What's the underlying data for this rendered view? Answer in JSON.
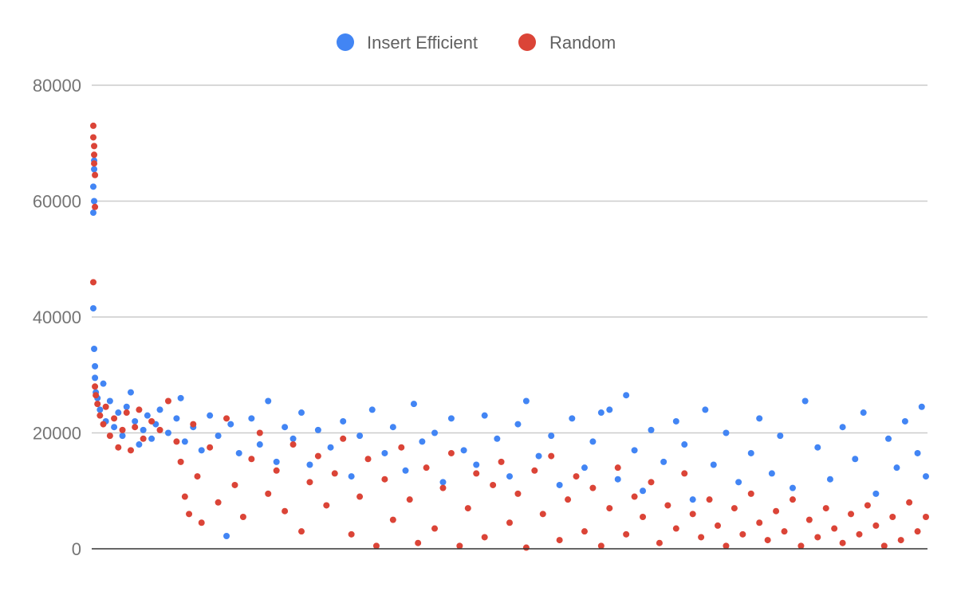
{
  "chart_data": {
    "type": "scatter",
    "title": "",
    "xlabel": "",
    "ylabel": "",
    "ylim": [
      0,
      80000
    ],
    "y_ticks": [
      "0",
      "20000",
      "40000",
      "60000",
      "80000"
    ],
    "x_tick_labels_shown": false,
    "grid": "horizontal",
    "legend_position": "top",
    "series": [
      {
        "name": "Insert Efficient",
        "color": "#4285f4",
        "points": [
          [
            0,
            58000
          ],
          [
            0,
            62500
          ],
          [
            1,
            65500
          ],
          [
            1,
            67000
          ],
          [
            1,
            60000
          ],
          [
            0,
            41500
          ],
          [
            1,
            34500
          ],
          [
            2,
            31500
          ],
          [
            2,
            29500
          ],
          [
            3,
            27000
          ],
          [
            5,
            26000
          ],
          [
            8,
            24000
          ],
          [
            12,
            28500
          ],
          [
            15,
            22000
          ],
          [
            20,
            25500
          ],
          [
            25,
            21000
          ],
          [
            30,
            23500
          ],
          [
            35,
            19500
          ],
          [
            40,
            24500
          ],
          [
            45,
            27000
          ],
          [
            50,
            22000
          ],
          [
            55,
            18000
          ],
          [
            60,
            20500
          ],
          [
            65,
            23000
          ],
          [
            70,
            19000
          ],
          [
            75,
            21500
          ],
          [
            80,
            24000
          ],
          [
            90,
            20000
          ],
          [
            100,
            22500
          ],
          [
            105,
            26000
          ],
          [
            110,
            18500
          ],
          [
            120,
            21000
          ],
          [
            130,
            17000
          ],
          [
            140,
            23000
          ],
          [
            150,
            19500
          ],
          [
            160,
            2200
          ],
          [
            165,
            21500
          ],
          [
            175,
            16500
          ],
          [
            190,
            22500
          ],
          [
            200,
            18000
          ],
          [
            210,
            25500
          ],
          [
            220,
            15000
          ],
          [
            230,
            21000
          ],
          [
            240,
            19000
          ],
          [
            250,
            23500
          ],
          [
            260,
            14500
          ],
          [
            270,
            20500
          ],
          [
            285,
            17500
          ],
          [
            300,
            22000
          ],
          [
            310,
            12500
          ],
          [
            320,
            19500
          ],
          [
            335,
            24000
          ],
          [
            350,
            16500
          ],
          [
            360,
            21000
          ],
          [
            375,
            13500
          ],
          [
            385,
            25000
          ],
          [
            395,
            18500
          ],
          [
            410,
            20000
          ],
          [
            420,
            11500
          ],
          [
            430,
            22500
          ],
          [
            445,
            17000
          ],
          [
            460,
            14500
          ],
          [
            470,
            23000
          ],
          [
            485,
            19000
          ],
          [
            500,
            12500
          ],
          [
            510,
            21500
          ],
          [
            520,
            25500
          ],
          [
            535,
            16000
          ],
          [
            550,
            19500
          ],
          [
            560,
            11000
          ],
          [
            575,
            22500
          ],
          [
            590,
            14000
          ],
          [
            600,
            18500
          ],
          [
            610,
            23500
          ],
          [
            620,
            24000
          ],
          [
            630,
            12000
          ],
          [
            640,
            26500
          ],
          [
            650,
            17000
          ],
          [
            660,
            10000
          ],
          [
            670,
            20500
          ],
          [
            685,
            15000
          ],
          [
            700,
            22000
          ],
          [
            710,
            18000
          ],
          [
            720,
            8500
          ],
          [
            735,
            24000
          ],
          [
            745,
            14500
          ],
          [
            760,
            20000
          ],
          [
            775,
            11500
          ],
          [
            790,
            16500
          ],
          [
            800,
            22500
          ],
          [
            815,
            13000
          ],
          [
            825,
            19500
          ],
          [
            840,
            10500
          ],
          [
            855,
            25500
          ],
          [
            870,
            17500
          ],
          [
            885,
            12000
          ],
          [
            900,
            21000
          ],
          [
            915,
            15500
          ],
          [
            925,
            23500
          ],
          [
            940,
            9500
          ],
          [
            955,
            19000
          ],
          [
            965,
            14000
          ],
          [
            975,
            22000
          ],
          [
            990,
            16500
          ],
          [
            995,
            24500
          ],
          [
            1000,
            12500
          ]
        ]
      },
      {
        "name": "Random",
        "color": "#db4437",
        "points": [
          [
            0,
            73000
          ],
          [
            0,
            71000
          ],
          [
            1,
            69500
          ],
          [
            1,
            68000
          ],
          [
            1,
            66500
          ],
          [
            2,
            64500
          ],
          [
            2,
            59000
          ],
          [
            0,
            46000
          ],
          [
            2,
            28000
          ],
          [
            3,
            26500
          ],
          [
            5,
            25000
          ],
          [
            8,
            23000
          ],
          [
            12,
            21500
          ],
          [
            15,
            24500
          ],
          [
            20,
            19500
          ],
          [
            25,
            22500
          ],
          [
            30,
            17500
          ],
          [
            35,
            20500
          ],
          [
            40,
            23500
          ],
          [
            45,
            17000
          ],
          [
            50,
            21000
          ],
          [
            55,
            24000
          ],
          [
            60,
            19000
          ],
          [
            70,
            22000
          ],
          [
            80,
            20500
          ],
          [
            90,
            25500
          ],
          [
            100,
            18500
          ],
          [
            105,
            15000
          ],
          [
            110,
            9000
          ],
          [
            115,
            6000
          ],
          [
            120,
            21500
          ],
          [
            125,
            12500
          ],
          [
            130,
            4500
          ],
          [
            140,
            17500
          ],
          [
            150,
            8000
          ],
          [
            160,
            22500
          ],
          [
            170,
            11000
          ],
          [
            180,
            5500
          ],
          [
            190,
            15500
          ],
          [
            200,
            20000
          ],
          [
            210,
            9500
          ],
          [
            220,
            13500
          ],
          [
            230,
            6500
          ],
          [
            240,
            18000
          ],
          [
            250,
            3000
          ],
          [
            260,
            11500
          ],
          [
            270,
            16000
          ],
          [
            280,
            7500
          ],
          [
            290,
            13000
          ],
          [
            300,
            19000
          ],
          [
            310,
            2500
          ],
          [
            320,
            9000
          ],
          [
            330,
            15500
          ],
          [
            340,
            500
          ],
          [
            350,
            12000
          ],
          [
            360,
            5000
          ],
          [
            370,
            17500
          ],
          [
            380,
            8500
          ],
          [
            390,
            1000
          ],
          [
            400,
            14000
          ],
          [
            410,
            3500
          ],
          [
            420,
            10500
          ],
          [
            430,
            16500
          ],
          [
            440,
            500
          ],
          [
            450,
            7000
          ],
          [
            460,
            13000
          ],
          [
            470,
            2000
          ],
          [
            480,
            11000
          ],
          [
            490,
            15000
          ],
          [
            500,
            4500
          ],
          [
            510,
            9500
          ],
          [
            520,
            200
          ],
          [
            530,
            13500
          ],
          [
            540,
            6000
          ],
          [
            550,
            16000
          ],
          [
            560,
            1500
          ],
          [
            570,
            8500
          ],
          [
            580,
            12500
          ],
          [
            590,
            3000
          ],
          [
            600,
            10500
          ],
          [
            610,
            500
          ],
          [
            620,
            7000
          ],
          [
            630,
            14000
          ],
          [
            640,
            2500
          ],
          [
            650,
            9000
          ],
          [
            660,
            5500
          ],
          [
            670,
            11500
          ],
          [
            680,
            1000
          ],
          [
            690,
            7500
          ],
          [
            700,
            3500
          ],
          [
            710,
            13000
          ],
          [
            720,
            6000
          ],
          [
            730,
            2000
          ],
          [
            740,
            8500
          ],
          [
            750,
            4000
          ],
          [
            760,
            500
          ],
          [
            770,
            7000
          ],
          [
            780,
            2500
          ],
          [
            790,
            9500
          ],
          [
            800,
            4500
          ],
          [
            810,
            1500
          ],
          [
            820,
            6500
          ],
          [
            830,
            3000
          ],
          [
            840,
            8500
          ],
          [
            850,
            500
          ],
          [
            860,
            5000
          ],
          [
            870,
            2000
          ],
          [
            880,
            7000
          ],
          [
            890,
            3500
          ],
          [
            900,
            1000
          ],
          [
            910,
            6000
          ],
          [
            920,
            2500
          ],
          [
            930,
            7500
          ],
          [
            940,
            4000
          ],
          [
            950,
            500
          ],
          [
            960,
            5500
          ],
          [
            970,
            1500
          ],
          [
            980,
            8000
          ],
          [
            990,
            3000
          ],
          [
            1000,
            5500
          ]
        ]
      }
    ]
  }
}
